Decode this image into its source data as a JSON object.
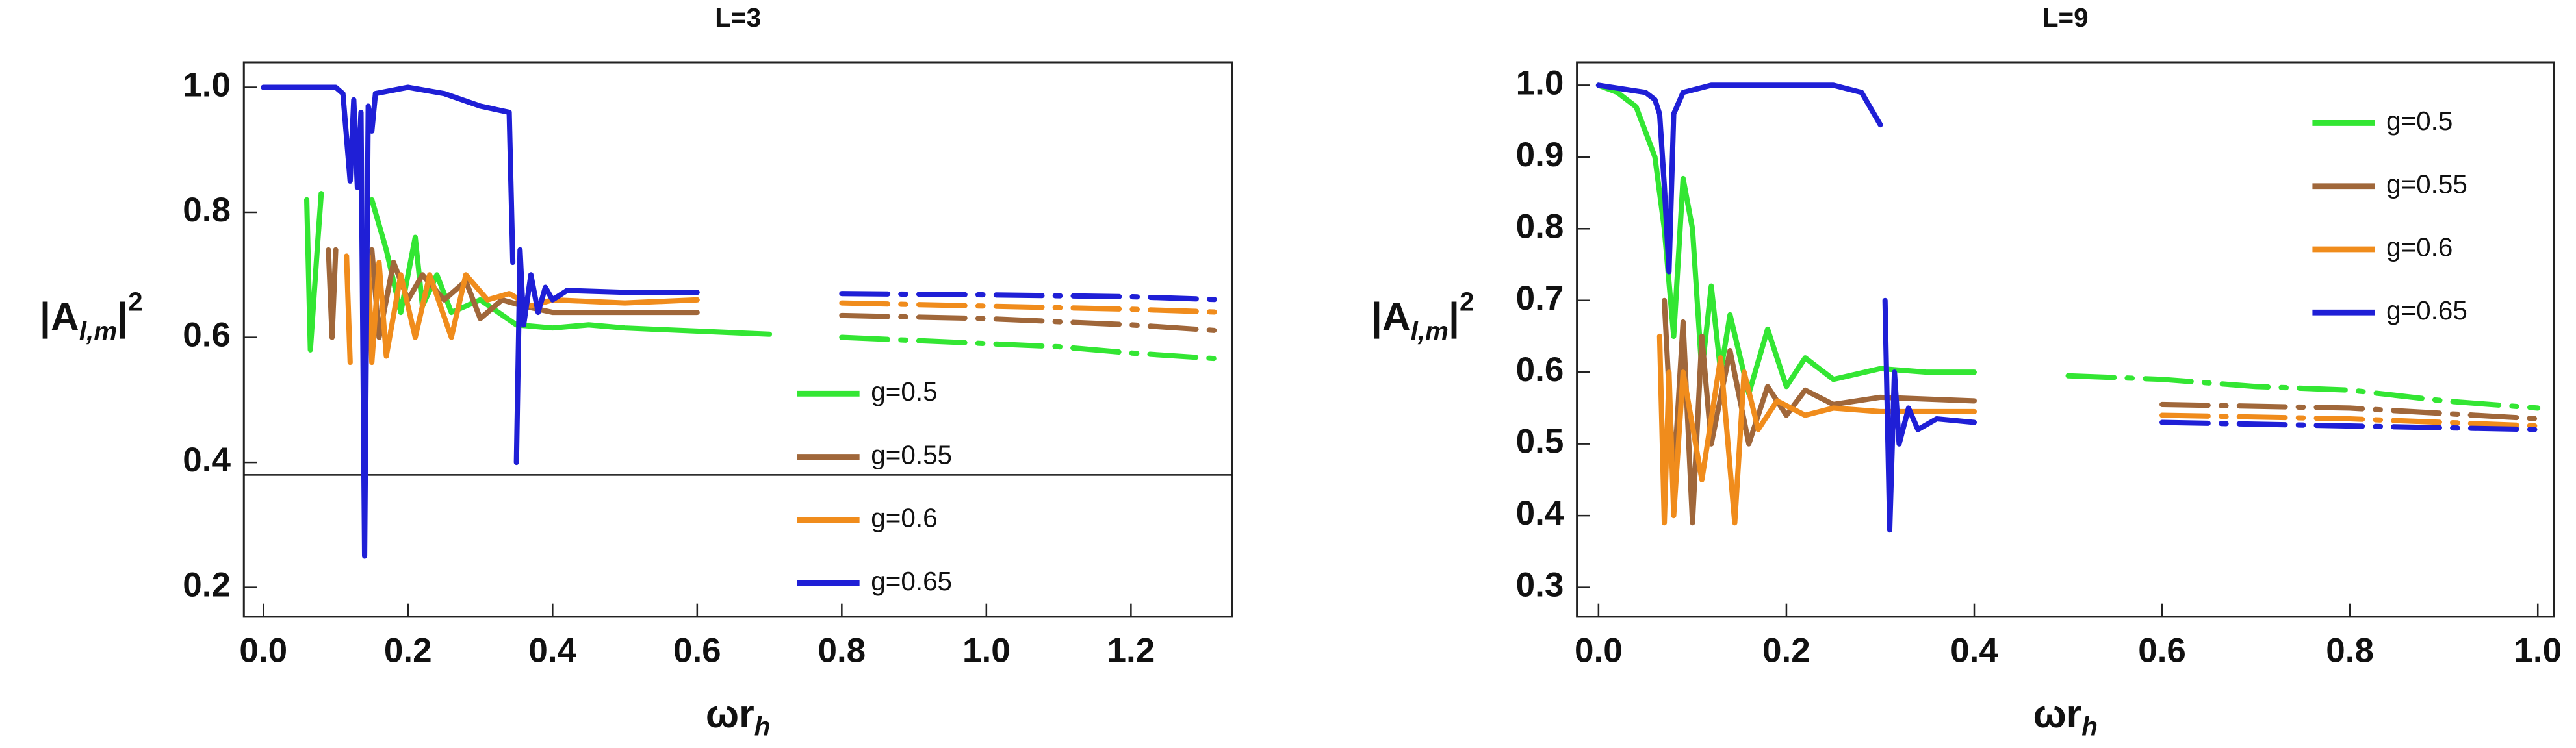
{
  "chart_data": [
    {
      "type": "line",
      "title": "L=3",
      "ylabel": [
        "|A",
        "l,m",
        "|",
        "2"
      ],
      "xlabel": [
        "ωr",
        "h"
      ],
      "xlim": [
        -0.027,
        1.34
      ],
      "ylim": [
        0.153,
        1.04
      ],
      "xticks": [
        {
          "value": 0,
          "label": "0.0"
        },
        0.2,
        0.4,
        0.6,
        0.8,
        {
          "value": 1,
          "label": "1.0"
        },
        1.2
      ],
      "yticks": [
        0.2,
        0.4,
        0.6,
        0.8,
        {
          "value": 1,
          "label": "1.0"
        }
      ],
      "hline": 0.38,
      "dash_start": 0.78,
      "legend_position": "lower right",
      "series": [
        {
          "name": "g=0.5",
          "color": "#33e633",
          "x": [
            0.06,
            0.065,
            0.075,
            0.08,
            0.1,
            0.15,
            0.17,
            0.19,
            0.2,
            0.21,
            0.22,
            0.24,
            0.26,
            0.3,
            0.35,
            0.4,
            0.45,
            0.5,
            0.6,
            0.7,
            0.8,
            0.9,
            1.0,
            1.1,
            1.2,
            1.33
          ],
          "values": [
            0.82,
            0.58,
            0.75,
            0.83,
            null,
            0.82,
            0.74,
            0.64,
            0.7,
            0.76,
            0.65,
            0.7,
            0.64,
            0.66,
            0.62,
            0.615,
            0.62,
            0.615,
            0.61,
            0.605,
            0.6,
            0.595,
            0.59,
            0.585,
            0.575,
            0.565
          ]
        },
        {
          "name": "g=0.55",
          "color": "#a0673a",
          "x": [
            0.09,
            0.095,
            0.1,
            0.12,
            0.15,
            0.16,
            0.18,
            0.2,
            0.22,
            0.25,
            0.28,
            0.3,
            0.33,
            0.36,
            0.4,
            0.5,
            0.6,
            0.8,
            1.0,
            1.2,
            1.33
          ],
          "values": [
            0.74,
            0.6,
            0.74,
            null,
            0.74,
            0.6,
            0.72,
            0.66,
            0.7,
            0.66,
            0.69,
            0.63,
            0.66,
            0.65,
            0.64,
            0.64,
            0.64,
            0.635,
            0.63,
            0.62,
            0.61
          ]
        },
        {
          "name": "g=0.6",
          "color": "#f08c1c",
          "x": [
            0.115,
            0.12,
            0.13,
            0.145,
            0.15,
            0.16,
            0.17,
            0.19,
            0.21,
            0.23,
            0.26,
            0.28,
            0.31,
            0.34,
            0.37,
            0.4,
            0.5,
            0.6,
            0.8,
            1.0,
            1.2,
            1.33
          ],
          "values": [
            0.73,
            0.56,
            null,
            0.73,
            0.56,
            0.72,
            0.57,
            0.7,
            0.6,
            0.7,
            0.6,
            0.7,
            0.66,
            0.67,
            0.65,
            0.66,
            0.655,
            0.66,
            0.655,
            0.65,
            0.645,
            0.64
          ]
        },
        {
          "name": "g=0.65",
          "color": "#1f1fd6",
          "x": [
            0,
            0.1,
            0.11,
            0.12,
            0.125,
            0.13,
            0.135,
            0.14,
            0.145,
            0.15,
            0.155,
            0.2,
            0.25,
            0.3,
            0.34,
            0.345,
            0.347,
            0.35,
            0.355,
            0.36,
            0.37,
            0.38,
            0.39,
            0.4,
            0.42,
            0.5,
            0.6,
            0.8,
            1.0,
            1.2,
            1.33
          ],
          "values": [
            1.0,
            1.0,
            0.99,
            0.85,
            0.98,
            0.84,
            0.96,
            0.25,
            0.97,
            0.93,
            0.99,
            1.0,
            0.99,
            0.97,
            0.96,
            0.72,
            null,
            0.4,
            0.74,
            0.62,
            0.7,
            0.64,
            0.68,
            0.66,
            0.675,
            0.672,
            0.672,
            0.67,
            0.668,
            0.665,
            0.66
          ]
        }
      ]
    },
    {
      "type": "line",
      "title": "L=9",
      "ylabel": [
        "|A",
        "l,m",
        "|",
        "2"
      ],
      "xlabel": [
        "ωr",
        "h"
      ],
      "xlim": [
        -0.023,
        1.017
      ],
      "ylim": [
        0.259,
        1.032
      ],
      "xticks": [
        {
          "value": 0,
          "label": "0.0"
        },
        0.2,
        0.4,
        0.6,
        0.8,
        {
          "value": 1,
          "label": "1.0"
        }
      ],
      "yticks": [
        0.3,
        0.4,
        0.5,
        0.6,
        0.7,
        0.8,
        0.9,
        {
          "value": 1,
          "label": "1.0"
        }
      ],
      "dash_start": 0.5,
      "legend_position": "upper right",
      "series": [
        {
          "name": "g=0.5",
          "color": "#33e633",
          "x": [
            0,
            0.02,
            0.04,
            0.06,
            0.07,
            0.08,
            0.09,
            0.1,
            0.11,
            0.12,
            0.13,
            0.14,
            0.16,
            0.18,
            0.2,
            0.22,
            0.25,
            0.3,
            0.35,
            0.4,
            0.5,
            0.6,
            0.7,
            0.8,
            0.9,
            1.0
          ],
          "values": [
            1.0,
            0.99,
            0.97,
            0.9,
            0.8,
            0.65,
            0.87,
            0.8,
            0.6,
            0.72,
            0.6,
            0.68,
            0.57,
            0.66,
            0.58,
            0.62,
            0.59,
            0.605,
            0.6,
            0.6,
            0.595,
            0.59,
            0.58,
            0.575,
            0.56,
            0.55
          ]
        },
        {
          "name": "g=0.55",
          "color": "#a0673a",
          "x": [
            0.07,
            0.08,
            0.09,
            0.1,
            0.11,
            0.12,
            0.14,
            0.16,
            0.18,
            0.2,
            0.22,
            0.25,
            0.3,
            0.4,
            0.6,
            0.8,
            1.0
          ],
          "values": [
            0.7,
            0.45,
            0.67,
            0.39,
            0.65,
            0.5,
            0.63,
            0.5,
            0.58,
            0.54,
            0.575,
            0.555,
            0.565,
            0.56,
            0.555,
            0.55,
            0.535
          ]
        },
        {
          "name": "g=0.6",
          "color": "#f08c1c",
          "x": [
            0.065,
            0.07,
            0.075,
            0.08,
            0.09,
            0.11,
            0.13,
            0.145,
            0.155,
            0.17,
            0.19,
            0.22,
            0.25,
            0.3,
            0.4,
            0.6,
            0.8,
            1.0
          ],
          "values": [
            0.65,
            0.39,
            0.6,
            0.4,
            0.6,
            0.45,
            0.62,
            0.39,
            0.6,
            0.52,
            0.56,
            0.54,
            0.55,
            0.545,
            0.545,
            0.54,
            0.535,
            0.525
          ]
        },
        {
          "name": "g=0.65",
          "color": "#1f1fd6",
          "x": [
            0,
            0.05,
            0.06,
            0.065,
            0.07,
            0.075,
            0.08,
            0.09,
            0.12,
            0.2,
            0.25,
            0.28,
            0.3,
            0.302,
            0.305,
            0.31,
            0.315,
            0.32,
            0.33,
            0.34,
            0.36,
            0.4,
            0.6,
            0.8,
            1.0
          ],
          "values": [
            1.0,
            0.99,
            0.98,
            0.96,
            0.86,
            0.74,
            0.96,
            0.99,
            1.0,
            1.0,
            1.0,
            0.99,
            0.945,
            null,
            0.7,
            0.38,
            0.6,
            0.5,
            0.55,
            0.52,
            0.535,
            0.53,
            0.53,
            0.525,
            0.52
          ]
        }
      ]
    }
  ]
}
